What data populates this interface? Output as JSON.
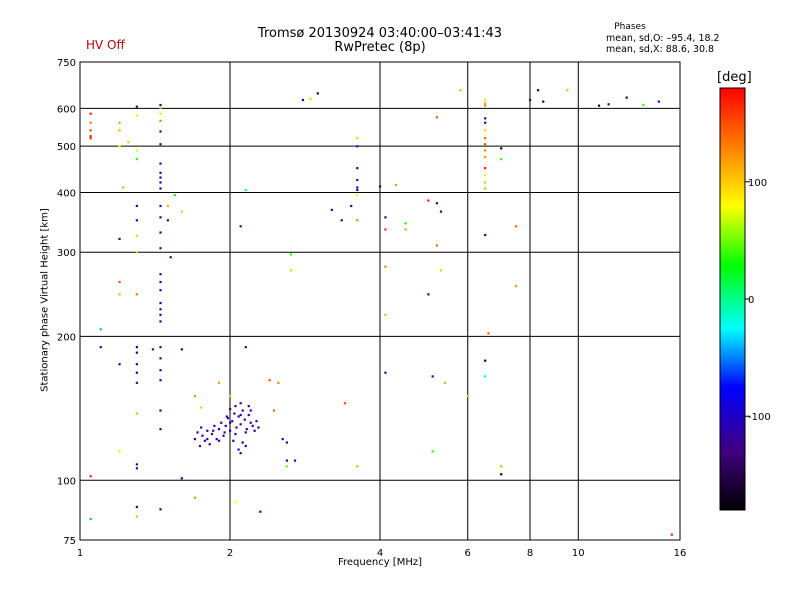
{
  "header": {
    "title_line1": "Tromsø 20130924 03:40:00–03:41:43",
    "title_line2": "RwPretec (8p)",
    "status": "HV Off",
    "status_color": "#c00000"
  },
  "phase_stats": {
    "title": "Phases",
    "line_o": "mean, sd,O:  –95.4, 18.2",
    "line_x": "mean, sd,X:  88.6, 30.8"
  },
  "colorbar": {
    "title": "[deg]",
    "ticks": [
      "100",
      "0",
      "-100"
    ],
    "tick_values": [
      100,
      0,
      -100
    ],
    "range": [
      -180,
      180
    ]
  },
  "chart_data": {
    "type": "scatter",
    "title": "Tromsø 20130924 03:40:00–03:41:43 RwPretec (8p)",
    "xlabel": "Frequency [MHz]",
    "ylabel": "Stationary phase Virtual Height [km]",
    "xscale": "log",
    "yscale": "log",
    "xlim": [
      1,
      16
    ],
    "ylim": [
      75,
      750
    ],
    "xticks": [
      1,
      2,
      4,
      6,
      8,
      10,
      16
    ],
    "xtick_labels": [
      "1",
      "2",
      "4",
      "6",
      "8",
      "10",
      "16"
    ],
    "yticks": [
      75,
      100,
      200,
      300,
      400,
      500,
      600,
      750
    ],
    "ytick_labels": [
      "75",
      "100",
      "200",
      "300",
      "400",
      "500",
      "600",
      "750"
    ],
    "grid": true,
    "color_meaning": "phase [deg]",
    "points": [
      [
        1.05,
        585,
        170
      ],
      [
        1.05,
        560,
        130
      ],
      [
        1.05,
        540,
        150
      ],
      [
        1.05,
        525,
        160
      ],
      [
        1.05,
        520,
        170
      ],
      [
        1.05,
        102,
        170
      ],
      [
        1.05,
        83,
        -40
      ],
      [
        1.1,
        207,
        -40
      ],
      [
        1.1,
        190,
        -110
      ],
      [
        1.2,
        560,
        120
      ],
      [
        1.2,
        540,
        110
      ],
      [
        1.2,
        500,
        80
      ],
      [
        1.2,
        320,
        -130
      ],
      [
        1.2,
        260,
        150
      ],
      [
        1.2,
        245,
        110
      ],
      [
        1.2,
        175,
        -110
      ],
      [
        1.2,
        115,
        70
      ],
      [
        1.22,
        410,
        110
      ],
      [
        1.25,
        510,
        100
      ],
      [
        1.3,
        605,
        -130
      ],
      [
        1.3,
        580,
        70
      ],
      [
        1.3,
        490,
        70
      ],
      [
        1.3,
        470,
        40
      ],
      [
        1.3,
        375,
        -120
      ],
      [
        1.3,
        350,
        -120
      ],
      [
        1.3,
        325,
        60
      ],
      [
        1.3,
        300,
        60
      ],
      [
        1.3,
        245,
        130
      ],
      [
        1.3,
        190,
        -140
      ],
      [
        1.3,
        185,
        -110
      ],
      [
        1.3,
        175,
        -110
      ],
      [
        1.3,
        168,
        -110
      ],
      [
        1.3,
        160,
        -130
      ],
      [
        1.3,
        138,
        50
      ],
      [
        1.3,
        108,
        -110
      ],
      [
        1.3,
        106,
        -130
      ],
      [
        1.3,
        88,
        -130
      ],
      [
        1.3,
        84,
        50
      ],
      [
        1.45,
        610,
        -110
      ],
      [
        1.45,
        602,
        100
      ],
      [
        1.45,
        585,
        70
      ],
      [
        1.45,
        565,
        130
      ],
      [
        1.45,
        537,
        -120
      ],
      [
        1.45,
        505,
        -120
      ],
      [
        1.45,
        460,
        -110
      ],
      [
        1.45,
        440,
        -115
      ],
      [
        1.45,
        430,
        -110
      ],
      [
        1.45,
        420,
        -110
      ],
      [
        1.45,
        408,
        -120
      ],
      [
        1.45,
        375,
        -110
      ],
      [
        1.45,
        355,
        -115
      ],
      [
        1.45,
        330,
        -110
      ],
      [
        1.45,
        306,
        -120
      ],
      [
        1.45,
        270,
        -110
      ],
      [
        1.45,
        260,
        -115
      ],
      [
        1.45,
        250,
        -110
      ],
      [
        1.45,
        235,
        -120
      ],
      [
        1.45,
        228,
        -110
      ],
      [
        1.45,
        222,
        -115
      ],
      [
        1.45,
        215,
        -110
      ],
      [
        1.45,
        190,
        -110
      ],
      [
        1.45,
        180,
        -115
      ],
      [
        1.45,
        170,
        -110
      ],
      [
        1.45,
        162,
        -120
      ],
      [
        1.45,
        140,
        -115
      ],
      [
        1.45,
        128,
        -110
      ],
      [
        1.45,
        87,
        -120
      ],
      [
        1.4,
        188,
        -120
      ],
      [
        1.5,
        375,
        110
      ],
      [
        1.5,
        350,
        -120
      ],
      [
        1.52,
        293,
        -110
      ],
      [
        1.55,
        395,
        30
      ],
      [
        1.6,
        365,
        100
      ],
      [
        1.6,
        188,
        -140
      ],
      [
        1.6,
        101,
        -120
      ],
      [
        1.7,
        92,
        120
      ],
      [
        1.7,
        150,
        120
      ],
      [
        1.75,
        142,
        100
      ],
      [
        1.9,
        160,
        120
      ],
      [
        2.0,
        150,
        100
      ],
      [
        2.05,
        90,
        80
      ],
      [
        2.1,
        340,
        -120
      ],
      [
        2.15,
        190,
        -130
      ],
      [
        2.15,
        405,
        -30
      ],
      [
        2.3,
        86,
        -120
      ],
      [
        2.4,
        162,
        150
      ],
      [
        2.45,
        140,
        140
      ],
      [
        2.5,
        160,
        130
      ],
      [
        2.55,
        122,
        -110
      ],
      [
        2.6,
        120,
        -110
      ],
      [
        2.6,
        110,
        -120
      ],
      [
        2.6,
        107,
        50
      ],
      [
        2.65,
        275,
        100
      ],
      [
        2.65,
        297,
        40
      ],
      [
        2.7,
        110,
        -110
      ],
      [
        2.8,
        625,
        -80
      ],
      [
        2.9,
        628,
        60
      ],
      [
        3.0,
        645,
        -150
      ],
      [
        3.2,
        368,
        -120
      ],
      [
        3.35,
        350,
        -120
      ],
      [
        3.4,
        145,
        150
      ],
      [
        3.5,
        375,
        -120
      ],
      [
        3.6,
        520,
        60
      ],
      [
        3.6,
        500,
        -110
      ],
      [
        3.6,
        450,
        -120
      ],
      [
        3.6,
        425,
        -120
      ],
      [
        3.6,
        410,
        -110
      ],
      [
        3.6,
        405,
        -115
      ],
      [
        3.6,
        395,
        80
      ],
      [
        3.6,
        350,
        130
      ],
      [
        3.6,
        107,
        110
      ],
      [
        4.0,
        412,
        -140
      ],
      [
        4.1,
        355,
        -120
      ],
      [
        4.1,
        335,
        160
      ],
      [
        4.1,
        280,
        130
      ],
      [
        4.1,
        222,
        110
      ],
      [
        4.1,
        168,
        -110
      ],
      [
        4.3,
        415,
        120
      ],
      [
        4.5,
        345,
        20
      ],
      [
        4.5,
        335,
        120
      ],
      [
        5.0,
        385,
        170
      ],
      [
        5.0,
        245,
        -140
      ],
      [
        5.1,
        165,
        -110
      ],
      [
        5.1,
        115,
        40
      ],
      [
        5.2,
        575,
        150
      ],
      [
        5.2,
        380,
        -120
      ],
      [
        5.2,
        310,
        140
      ],
      [
        5.3,
        275,
        100
      ],
      [
        5.3,
        365,
        -120
      ],
      [
        5.4,
        160,
        110
      ],
      [
        5.8,
        655,
        110
      ],
      [
        6.0,
        150,
        100
      ],
      [
        6.5,
        625,
        90
      ],
      [
        6.5,
        615,
        110
      ],
      [
        6.5,
        608,
        130
      ],
      [
        6.5,
        572,
        -120
      ],
      [
        6.5,
        560,
        -130
      ],
      [
        6.5,
        540,
        100
      ],
      [
        6.5,
        520,
        140
      ],
      [
        6.5,
        505,
        150
      ],
      [
        6.5,
        490,
        130
      ],
      [
        6.5,
        475,
        120
      ],
      [
        6.5,
        450,
        170
      ],
      [
        6.5,
        435,
        90
      ],
      [
        6.5,
        420,
        60
      ],
      [
        6.5,
        408,
        110
      ],
      [
        6.5,
        326,
        -110
      ],
      [
        6.5,
        178,
        -160
      ],
      [
        6.5,
        165,
        -20
      ],
      [
        6.6,
        203,
        140
      ],
      [
        7.0,
        495,
        -170
      ],
      [
        7.0,
        470,
        40
      ],
      [
        7.0,
        107,
        110
      ],
      [
        7.0,
        103,
        -170
      ],
      [
        7.5,
        340,
        140
      ],
      [
        7.5,
        255,
        120
      ],
      [
        8.0,
        625,
        -120
      ],
      [
        8.3,
        655,
        -150
      ],
      [
        8.5,
        620,
        -150
      ],
      [
        9.5,
        655,
        110
      ],
      [
        11.0,
        608,
        -160
      ],
      [
        11.5,
        612,
        -110
      ],
      [
        12.5,
        632,
        -150
      ],
      [
        13.5,
        610,
        40
      ],
      [
        14.5,
        620,
        -80
      ],
      [
        15.4,
        77,
        170
      ],
      [
        1.7,
        122,
        -120
      ],
      [
        1.72,
        126,
        -110
      ],
      [
        1.74,
        118,
        -120
      ],
      [
        1.76,
        124,
        -115
      ],
      [
        1.78,
        121,
        -110
      ],
      [
        1.8,
        127,
        -120
      ],
      [
        1.82,
        119,
        -110
      ],
      [
        1.84,
        125,
        -115
      ],
      [
        1.86,
        130,
        -120
      ],
      [
        1.88,
        122,
        -110
      ],
      [
        1.9,
        128,
        -115
      ],
      [
        1.92,
        132,
        -120
      ],
      [
        1.94,
        124,
        -110
      ],
      [
        1.96,
        130,
        -115
      ],
      [
        1.98,
        135,
        -120
      ],
      [
        2.0,
        127,
        -110
      ],
      [
        2.02,
        133,
        -115
      ],
      [
        2.04,
        138,
        -120
      ],
      [
        2.06,
        129,
        -110
      ],
      [
        2.08,
        136,
        -115
      ],
      [
        2.1,
        131,
        -120
      ],
      [
        2.12,
        140,
        -110
      ],
      [
        2.14,
        134,
        -115
      ],
      [
        2.16,
        128,
        -120
      ],
      [
        2.18,
        137,
        -110
      ],
      [
        2.2,
        132,
        -115
      ],
      [
        2.22,
        130,
        -120
      ],
      [
        2.24,
        127,
        -110
      ],
      [
        2.26,
        133,
        -115
      ],
      [
        2.28,
        129,
        -120
      ],
      [
        1.75,
        129,
        -110
      ],
      [
        1.8,
        122,
        -115
      ],
      [
        1.85,
        127,
        -120
      ],
      [
        1.9,
        121,
        -110
      ],
      [
        1.95,
        126,
        -115
      ],
      [
        2.0,
        132,
        -120
      ],
      [
        2.05,
        125,
        -110
      ],
      [
        2.1,
        137,
        -115
      ],
      [
        2.15,
        126,
        -120
      ],
      [
        2.2,
        140,
        -110
      ],
      [
        2.0,
        141,
        -115
      ],
      [
        2.05,
        143,
        -120
      ],
      [
        2.1,
        145,
        -110
      ],
      [
        2.12,
        120,
        -115
      ],
      [
        2.15,
        118,
        -120
      ],
      [
        2.1,
        114,
        -110
      ],
      [
        2.08,
        116,
        -115
      ],
      [
        2.18,
        143,
        -120
      ],
      [
        1.97,
        136,
        -110
      ],
      [
        2.03,
        121,
        -115
      ]
    ]
  }
}
